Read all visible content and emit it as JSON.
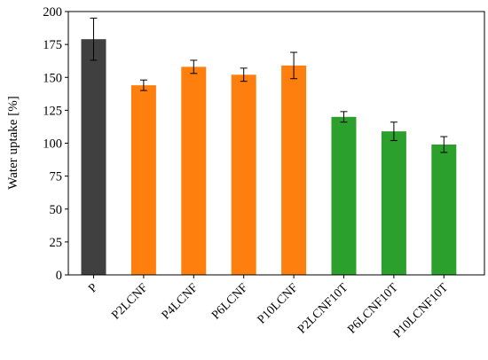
{
  "chart_data": {
    "type": "bar",
    "title": "",
    "xlabel": "",
    "ylabel": "Water uptake [%]",
    "ylim": [
      0,
      200
    ],
    "yticks": [
      0,
      25,
      50,
      75,
      100,
      125,
      150,
      175,
      200
    ],
    "grid": false,
    "legend": "none",
    "categories": [
      "P",
      "P2LCNF",
      "P4LCNF",
      "P6LCNF",
      "P10LCNF",
      "P2LCNF10T",
      "P6LCNF10T",
      "P10LCNF10T"
    ],
    "values": [
      179,
      144,
      158,
      152,
      159,
      120,
      109,
      99
    ],
    "errors": [
      16,
      4,
      5,
      5,
      10,
      4,
      7,
      6
    ],
    "bar_colors": [
      "#404040",
      "#ff7f0e",
      "#ff7f0e",
      "#ff7f0e",
      "#ff7f0e",
      "#2ca02c",
      "#2ca02c",
      "#2ca02c"
    ]
  }
}
